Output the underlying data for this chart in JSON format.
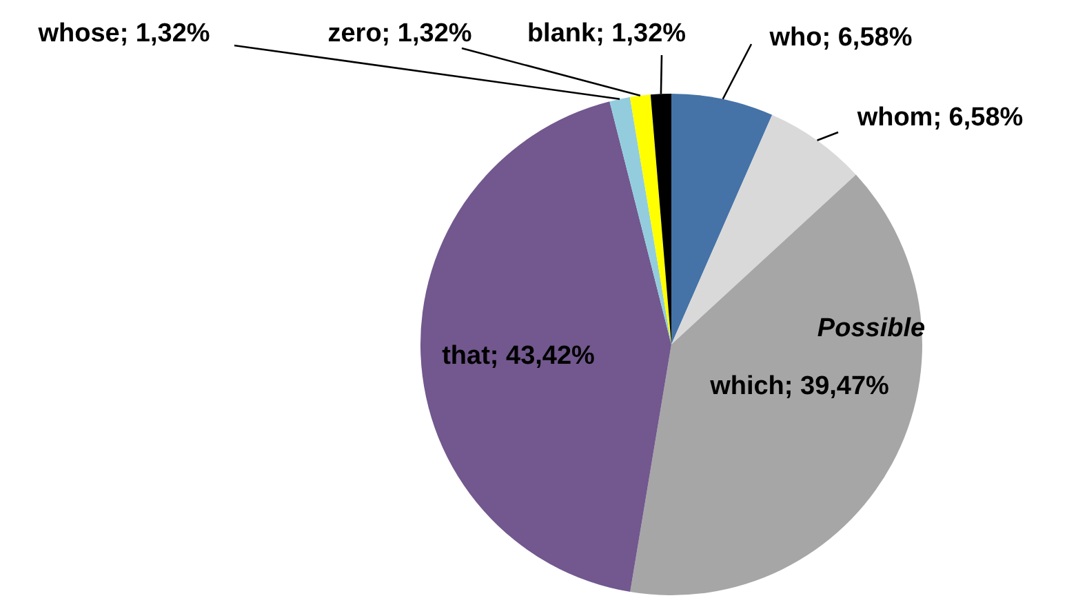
{
  "chart_data": {
    "type": "pie",
    "categories": [
      "who",
      "whom",
      "which",
      "that",
      "whose",
      "zero",
      "blank"
    ],
    "values": [
      6.58,
      6.58,
      39.47,
      43.42,
      1.32,
      1.32,
      1.32
    ],
    "value_labels": [
      "6,58%",
      "6,58%",
      "39,47%",
      "43,42%",
      "1,32%",
      "1,32%",
      "1,32%"
    ],
    "colors": [
      "#4573a7",
      "#d9d9d9",
      "#a6a6a6",
      "#72588e",
      "#93cddd",
      "#ffff00",
      "#000000"
    ],
    "annotations": [
      "Possible"
    ]
  }
}
